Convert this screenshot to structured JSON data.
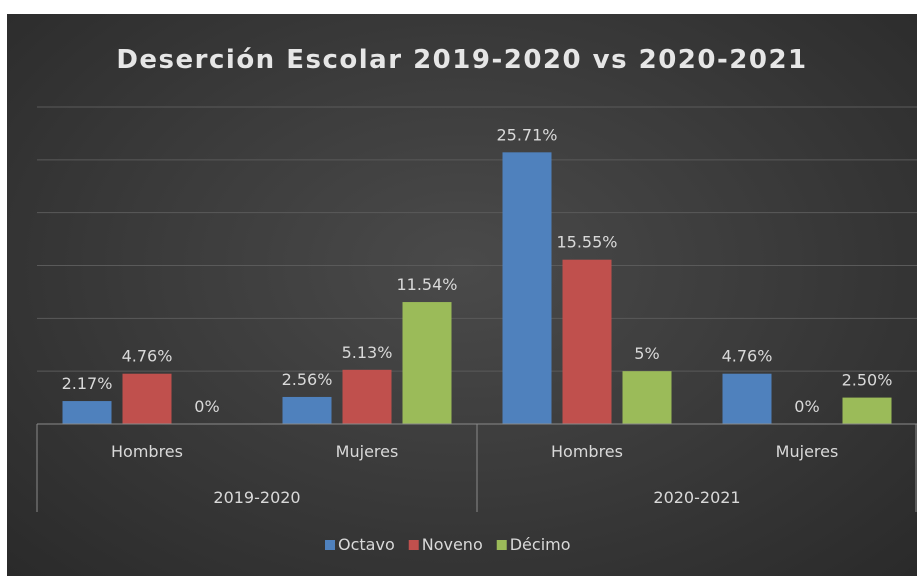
{
  "chart_data": {
    "type": "bar",
    "title": "Deserción Escolar 2019-2020 vs 2020-2021",
    "groups": [
      "2019-2020",
      "2020-2021"
    ],
    "categories": [
      "Hombres",
      "Mujeres",
      "Hombres",
      "Mujeres"
    ],
    "category_group": [
      0,
      0,
      1,
      1
    ],
    "series": [
      {
        "name": "Octavo",
        "color": "#4f81bd",
        "values": [
          2.17,
          2.56,
          25.71,
          4.76
        ],
        "labels": [
          "2.17%",
          "2.56%",
          "25.71%",
          "4.76%"
        ]
      },
      {
        "name": "Noveno",
        "color": "#c0504d",
        "values": [
          4.76,
          5.13,
          15.55,
          0
        ],
        "labels": [
          "4.76%",
          "5.13%",
          "15.55%",
          "0%"
        ]
      },
      {
        "name": "Décimo",
        "color": "#9bbb59",
        "values": [
          0,
          11.54,
          5,
          2.5
        ],
        "labels": [
          "0%",
          "11.54%",
          "5%",
          "2.50%"
        ]
      }
    ],
    "ylim": [
      0,
      30
    ],
    "grid": true,
    "legend": "bottom"
  }
}
